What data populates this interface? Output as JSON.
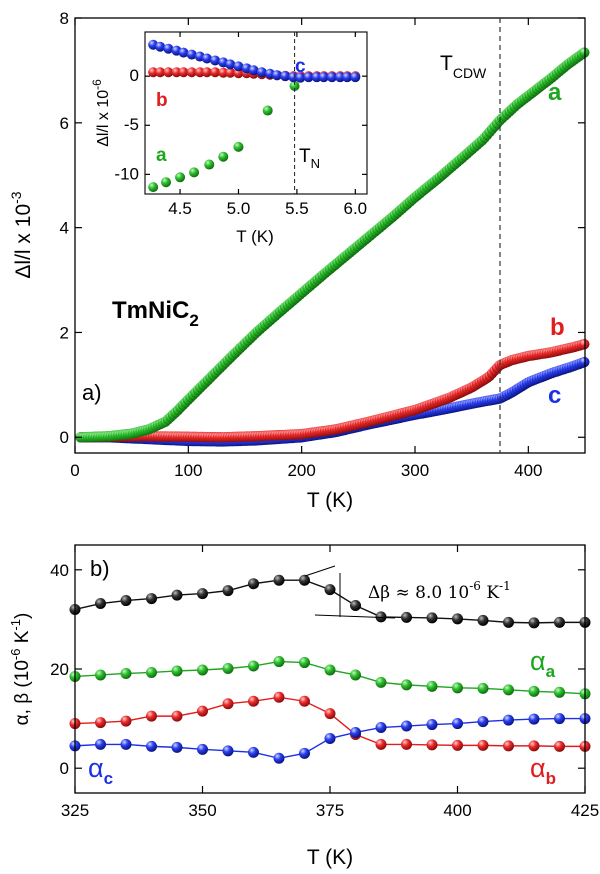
{
  "colors": {
    "a": "#1fa51f",
    "b": "#e21d1d",
    "c": "#1d2ee8",
    "beta": "#111111"
  },
  "chart_data": [
    {
      "id": "main",
      "type": "scatter",
      "panel_label": "a)",
      "compound": {
        "base": "TmNiC",
        "sub": "2"
      },
      "xlabel": "T (K)",
      "ylabel": "Δl/l x 10",
      "ylabel_exp": "-3",
      "xlim": [
        0,
        450
      ],
      "ylim": [
        -0.3,
        8
      ],
      "xticks": [
        0,
        100,
        200,
        300,
        400
      ],
      "yticks": [
        0,
        2,
        4,
        6,
        8
      ],
      "vline": {
        "x": 375,
        "label_main": "T",
        "label_sub": "CDW"
      },
      "series": [
        {
          "name": "a",
          "color_key": "a",
          "x": [
            5,
            30,
            50,
            65,
            80,
            90,
            100,
            120,
            140,
            160,
            180,
            200,
            220,
            240,
            260,
            280,
            300,
            320,
            340,
            360,
            375,
            390,
            405,
            420,
            435,
            450
          ],
          "y": [
            0,
            0.02,
            0.07,
            0.15,
            0.3,
            0.5,
            0.72,
            1.15,
            1.58,
            2.0,
            2.38,
            2.75,
            3.12,
            3.48,
            3.84,
            4.2,
            4.58,
            4.93,
            5.3,
            5.68,
            6.05,
            6.35,
            6.6,
            6.85,
            7.12,
            7.35
          ]
        },
        {
          "name": "b",
          "color_key": "b",
          "x": [
            5,
            30,
            60,
            100,
            130,
            160,
            200,
            230,
            260,
            300,
            330,
            350,
            365,
            375,
            385,
            400,
            420,
            440,
            450
          ],
          "y": [
            0,
            0.01,
            0.02,
            0.01,
            0.0,
            0.02,
            0.06,
            0.15,
            0.3,
            0.52,
            0.75,
            0.95,
            1.15,
            1.38,
            1.47,
            1.55,
            1.62,
            1.72,
            1.78
          ]
        },
        {
          "name": "c",
          "color_key": "c",
          "x": [
            5,
            30,
            60,
            100,
            130,
            160,
            200,
            230,
            260,
            300,
            330,
            350,
            365,
            375,
            385,
            400,
            420,
            440,
            450
          ],
          "y": [
            0,
            0.0,
            -0.03,
            -0.07,
            -0.08,
            -0.06,
            0.0,
            0.1,
            0.25,
            0.43,
            0.55,
            0.64,
            0.7,
            0.74,
            0.85,
            1.05,
            1.22,
            1.36,
            1.44
          ]
        }
      ]
    },
    {
      "id": "inset",
      "type": "scatter",
      "xlabel": "T (K)",
      "ylabel": "Δl/l x 10",
      "ylabel_exp": "-6",
      "xlim": [
        4.2,
        6.1
      ],
      "ylim": [
        -12,
        4.5
      ],
      "xticks": [
        4.5,
        5.0,
        5.5,
        6.0
      ],
      "yticks": [
        -10,
        -5,
        0
      ],
      "vline": {
        "x": 5.48,
        "label_main": "T",
        "label_sub": "N"
      },
      "series": [
        {
          "name": "a",
          "color_key": "a",
          "x": [
            4.27,
            4.38,
            4.5,
            4.62,
            4.75,
            4.87,
            5.0,
            5.25,
            5.48
          ],
          "y": [
            -11.3,
            -10.8,
            -10.3,
            -9.8,
            -9.0,
            -8.2,
            -7.2,
            -3.5,
            -1.0
          ]
        },
        {
          "name": "b",
          "color_key": "b",
          "x": [
            4.27,
            4.33,
            4.4,
            4.47,
            4.53,
            4.6,
            4.67,
            4.73,
            4.8,
            4.87,
            4.93,
            5.0,
            5.07,
            5.13,
            5.2,
            5.27,
            5.33,
            5.4,
            5.47,
            5.53,
            5.6,
            5.67,
            5.73,
            5.8,
            5.87,
            5.93,
            6.0
          ],
          "y": [
            0.4,
            0.4,
            0.4,
            0.4,
            0.4,
            0.4,
            0.4,
            0.4,
            0.4,
            0.35,
            0.35,
            0.3,
            0.3,
            0.25,
            0.2,
            0.15,
            0.1,
            0.05,
            0.0,
            0.0,
            0.0,
            0.0,
            0.0,
            0.0,
            0.0,
            0.0,
            0.0
          ]
        },
        {
          "name": "c",
          "color_key": "c",
          "x": [
            4.27,
            4.33,
            4.4,
            4.47,
            4.53,
            4.6,
            4.67,
            4.73,
            4.8,
            4.87,
            4.93,
            5.0,
            5.07,
            5.13,
            5.2,
            5.27,
            5.33,
            5.4,
            5.47,
            5.53,
            5.6,
            5.67,
            5.73,
            5.8,
            5.87,
            5.93,
            6.0
          ],
          "y": [
            3.2,
            3.0,
            2.8,
            2.6,
            2.4,
            2.2,
            2.0,
            1.8,
            1.6,
            1.4,
            1.2,
            1.0,
            0.8,
            0.6,
            0.4,
            0.25,
            0.1,
            0.0,
            -0.1,
            -0.15,
            -0.1,
            -0.1,
            -0.1,
            -0.1,
            -0.1,
            -0.1,
            -0.1
          ]
        }
      ]
    },
    {
      "id": "bottom",
      "type": "line",
      "panel_label": "b)",
      "xlabel": "T (K)",
      "ylabel": "α, β (10",
      "ylabel_exp": "-6",
      "ylabel_tail": " K",
      "ylabel_tail_exp": "-1",
      "ylabel_close": ")",
      "xlim": [
        325,
        425
      ],
      "ylim": [
        -5,
        45
      ],
      "xticks": [
        325,
        350,
        375,
        400,
        425
      ],
      "yticks": [
        0,
        20,
        40
      ],
      "x": [
        325,
        330,
        335,
        340,
        345,
        350,
        355,
        360,
        365,
        370,
        375,
        380,
        385,
        390,
        395,
        400,
        405,
        410,
        415,
        420,
        425
      ],
      "series": [
        {
          "name": "β",
          "color_key": "beta",
          "y": [
            32.0,
            33.2,
            33.8,
            34.2,
            34.9,
            35.2,
            35.8,
            37.2,
            37.9,
            37.9,
            36.0,
            32.8,
            30.5,
            30.4,
            30.3,
            30.1,
            29.8,
            29.4,
            29.3,
            29.4,
            29.4
          ]
        },
        {
          "name": "α_a",
          "color_key": "a",
          "y": [
            18.5,
            18.8,
            19.1,
            19.3,
            19.6,
            19.8,
            20.1,
            20.6,
            21.5,
            21.3,
            19.8,
            18.8,
            17.3,
            16.8,
            16.5,
            16.2,
            16.1,
            15.8,
            15.5,
            15.3,
            15.0
          ]
        },
        {
          "name": "α_b",
          "color_key": "b",
          "y": [
            9.0,
            9.2,
            9.5,
            10.5,
            10.5,
            11.5,
            13.0,
            13.5,
            14.3,
            13.5,
            11.0,
            6.8,
            4.8,
            4.8,
            4.7,
            4.6,
            4.6,
            4.5,
            4.5,
            4.4,
            4.4
          ]
        },
        {
          "name": "α_c",
          "color_key": "c",
          "y": [
            4.5,
            4.8,
            4.8,
            4.4,
            4.2,
            3.8,
            3.5,
            3.2,
            2.0,
            3.0,
            6.0,
            7.2,
            8.2,
            8.5,
            8.8,
            9.0,
            9.4,
            9.7,
            9.9,
            10.0,
            10.0
          ]
        }
      ],
      "annotation": {
        "text": "Δβ ≈ 8.0 10",
        "exp": "-6",
        "tail": " K",
        "tail_exp": "-1"
      },
      "series_labels": [
        {
          "main": "α",
          "sub": "a",
          "color_key": "a"
        },
        {
          "main": "α",
          "sub": "b",
          "color_key": "b"
        },
        {
          "main": "α",
          "sub": "c",
          "color_key": "c"
        }
      ]
    }
  ]
}
